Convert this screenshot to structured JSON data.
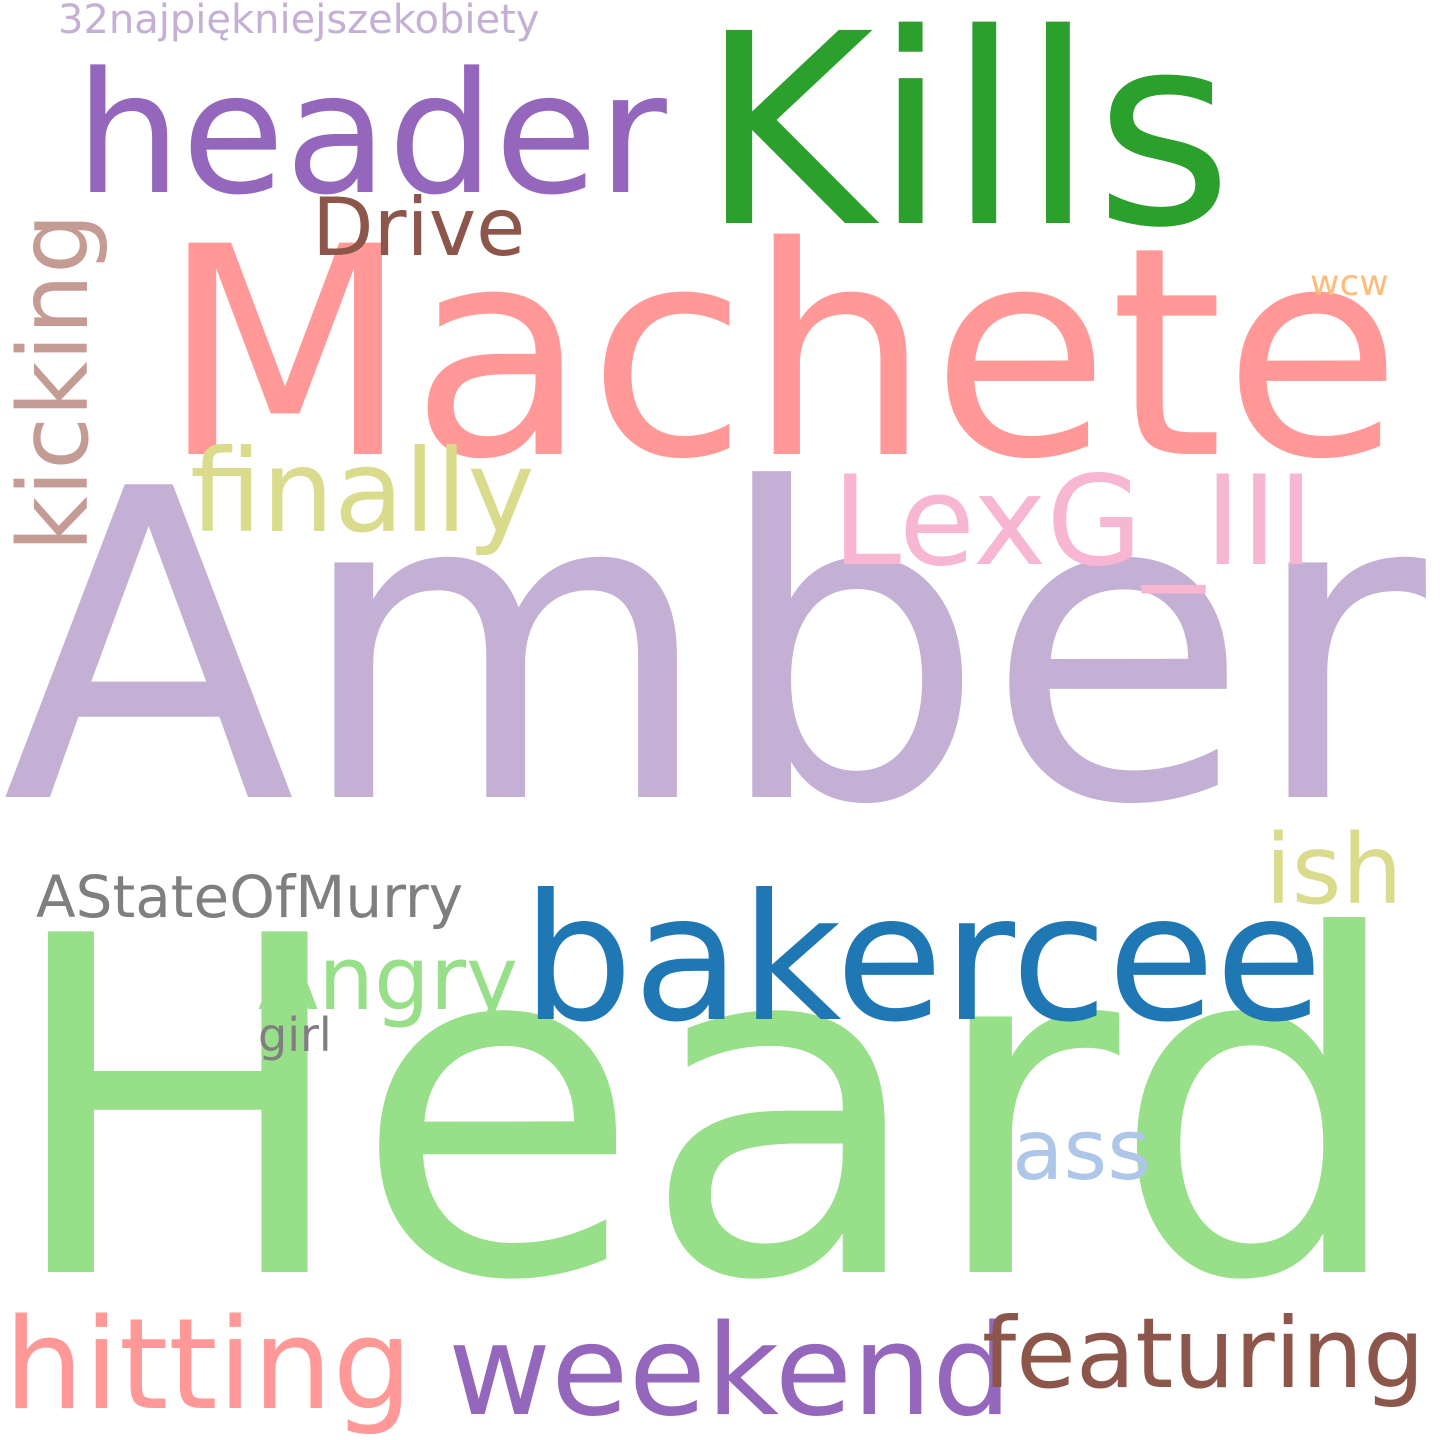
{
  "words": {
    "amber": {
      "text": "Amber",
      "color": "#c5b0d5"
    },
    "heard": {
      "text": "Heard",
      "color": "#98df8a"
    },
    "machete": {
      "text": "Machete",
      "color": "#ff9896"
    },
    "kills": {
      "text": "Kills",
      "color": "#2ca02c"
    },
    "header": {
      "text": "header",
      "color": "#9467bd"
    },
    "bakercee": {
      "text": "bakercee",
      "color": "#1f77b4"
    },
    "lexg": {
      "text": "LexG_III",
      "color": "#f7b6d2"
    },
    "finally": {
      "text": "finally",
      "color": "#dbdb8d"
    },
    "kicking": {
      "text": "kicking",
      "color": "#c49c94"
    },
    "drive": {
      "text": "Drive",
      "color": "#8c564b"
    },
    "wcw": {
      "text": "wcw",
      "color": "#ffbb78"
    },
    "polish": {
      "text": "32najpiękniejszekobiety",
      "color": "#c5b0d5"
    },
    "ish": {
      "text": "ish",
      "color": "#dbdb8d"
    },
    "astate": {
      "text": "AStateOfMurry",
      "color": "#7f7f7f"
    },
    "angry": {
      "text": "Angry",
      "color": "#98df8a"
    },
    "girl": {
      "text": "girl",
      "color": "#7f7f7f"
    },
    "ass": {
      "text": "ass",
      "color": "#aec7e8"
    },
    "hitting": {
      "text": "hitting",
      "color": "#ff9896"
    },
    "weekend": {
      "text": "weekend",
      "color": "#9467bd"
    },
    "featuring": {
      "text": "featuring",
      "color": "#8c564b"
    }
  }
}
